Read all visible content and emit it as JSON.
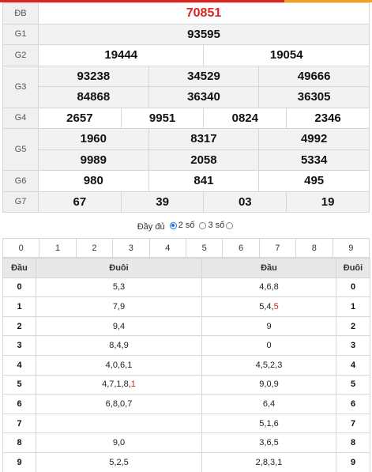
{
  "results": {
    "special": {
      "label": "ĐB",
      "numbers": [
        "70851"
      ]
    },
    "g1": {
      "label": "G1",
      "numbers": [
        "93595"
      ]
    },
    "g2": {
      "label": "G2",
      "numbers": [
        "19444",
        "19054"
      ]
    },
    "g3": {
      "label": "G3",
      "numbers": [
        "93238",
        "34529",
        "49666",
        "84868",
        "36340",
        "36305"
      ]
    },
    "g4": {
      "label": "G4",
      "numbers": [
        "2657",
        "9951",
        "0824",
        "2346"
      ]
    },
    "g5": {
      "label": "G5",
      "numbers": [
        "1960",
        "8317",
        "4992",
        "9989",
        "2058",
        "5334"
      ]
    },
    "g6": {
      "label": "G6",
      "numbers": [
        "980",
        "841",
        "495"
      ]
    },
    "g7": {
      "label": "G7",
      "numbers": [
        "67",
        "39",
        "03",
        "19"
      ]
    }
  },
  "options": {
    "full": "Đầy đủ",
    "two": "2 số",
    "three": "3 số",
    "selected": "2 số"
  },
  "digit_filter": [
    "0",
    "1",
    "2",
    "3",
    "4",
    "5",
    "6",
    "7",
    "8",
    "9"
  ],
  "loto": {
    "headers": {
      "dau": "Đầu",
      "duoi": "Đuôi",
      "dau2": "Đầu",
      "duoi2": "Đuôi"
    },
    "rows": [
      {
        "head": "0",
        "tails": "5,3",
        "heads": "4,6,8",
        "tail": "0"
      },
      {
        "head": "1",
        "tails": "7,9",
        "heads_pre": "5,4,",
        "heads_hl": "5",
        "tail": "1"
      },
      {
        "head": "2",
        "tails": "9,4",
        "heads": "9",
        "tail": "2"
      },
      {
        "head": "3",
        "tails": "8,4,9",
        "heads": "0",
        "tail": "3"
      },
      {
        "head": "4",
        "tails": "4,0,6,1",
        "heads": "4,5,2,3",
        "tail": "4"
      },
      {
        "head": "5",
        "tails_pre": "4,7,1,8,",
        "tails_hl": "1",
        "heads": "9,0,9",
        "tail": "5"
      },
      {
        "head": "6",
        "tails": "6,8,0,7",
        "heads": "6,4",
        "tail": "6"
      },
      {
        "head": "7",
        "tails": "",
        "heads": "5,1,6",
        "tail": "7"
      },
      {
        "head": "8",
        "tails": "9,0",
        "heads": "3,6,5",
        "tail": "8"
      },
      {
        "head": "9",
        "tails": "5,2,5",
        "heads": "2,8,3,1",
        "tail": "9"
      }
    ]
  },
  "colors": {
    "accent_red": "#d9251d",
    "accent_orange": "#f4a21c",
    "radio_blue": "#1a73e8"
  }
}
